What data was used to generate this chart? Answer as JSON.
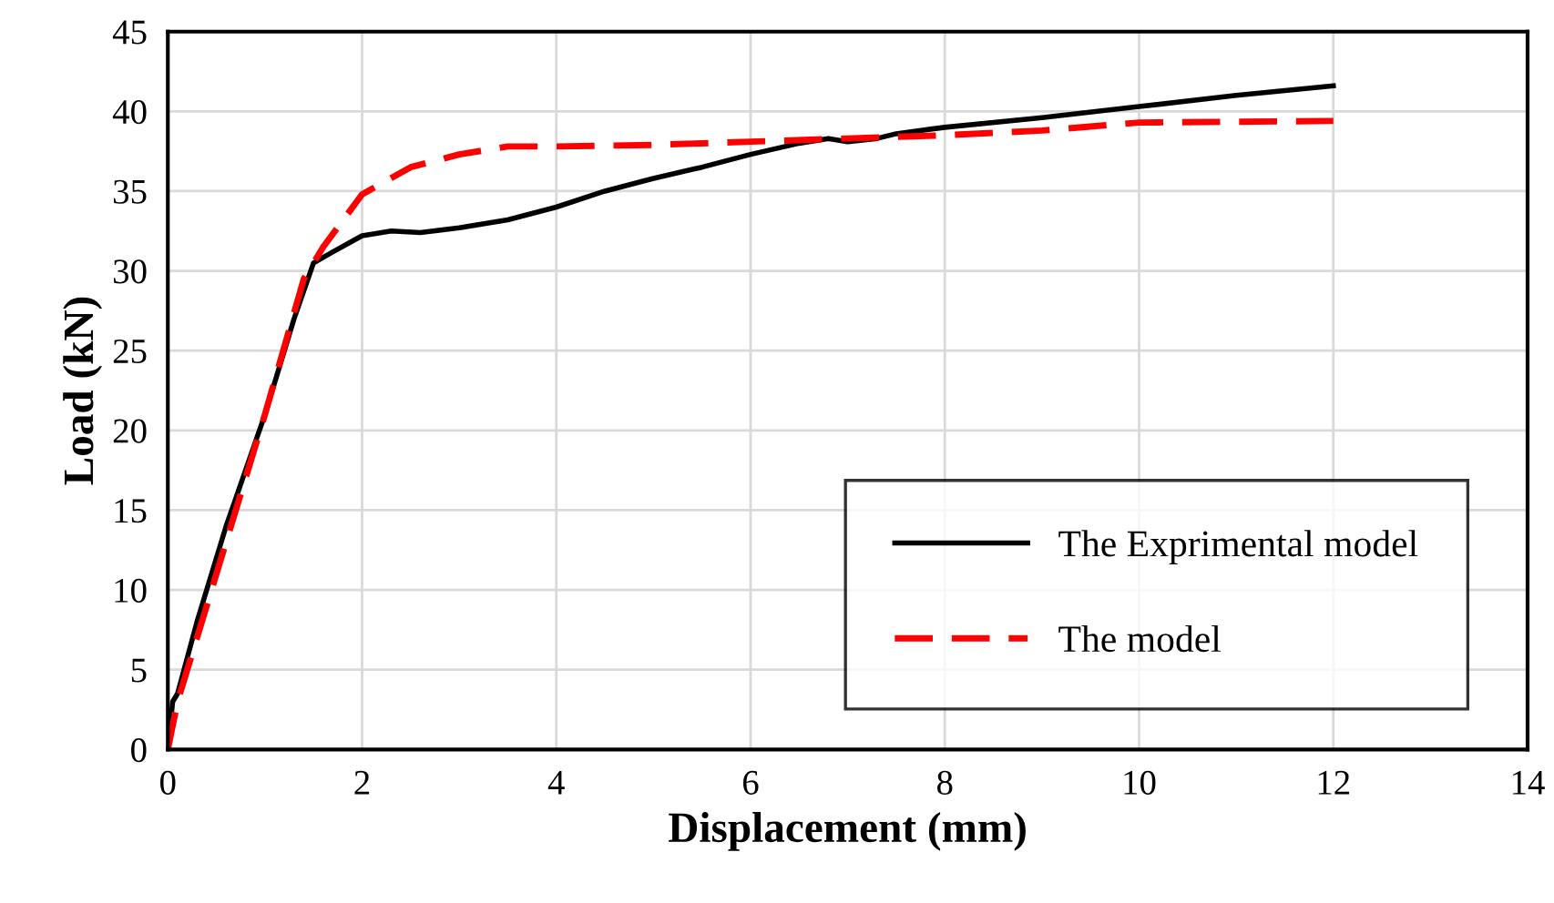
{
  "chart_data": {
    "type": "line",
    "xlabel": "Displacement (mm)",
    "ylabel": "Load (kN)",
    "xlim": [
      0,
      14
    ],
    "xticks": [
      0,
      2,
      4,
      6,
      8,
      10,
      12,
      14
    ],
    "ylim": [
      0,
      45
    ],
    "yticks": [
      0,
      5,
      10,
      15,
      20,
      25,
      30,
      35,
      40,
      45
    ],
    "grid": true,
    "legend": "bottom right",
    "series": [
      {
        "name": "The Exprimental model",
        "color": "#000000",
        "line_style": "solid",
        "x": [
          0,
          0.05,
          0.1,
          0.3,
          0.6,
          1.0,
          1.3,
          1.5,
          1.7,
          2,
          2.3,
          2.6,
          3,
          3.5,
          4,
          4.5,
          5,
          5.5,
          6,
          6.5,
          6.8,
          7,
          7.3,
          7.5,
          8,
          9,
          10,
          11,
          12
        ],
        "values": [
          0,
          3,
          3.5,
          8,
          14,
          21,
          27,
          30.5,
          31.2,
          32.2,
          32.5,
          32.4,
          32.7,
          33.2,
          34,
          35,
          35.8,
          36.5,
          37.3,
          38,
          38.3,
          38.1,
          38.3,
          38.6,
          39,
          39.6,
          40.3,
          41,
          41.6
        ]
      },
      {
        "name": "The model",
        "color": "#ff0000",
        "line_style": "dashed",
        "x": [
          0,
          0.1,
          0.5,
          1,
          1.4,
          1.6,
          2,
          2.5,
          3,
          3.5,
          4,
          5,
          6,
          7,
          8,
          9,
          10,
          12
        ],
        "values": [
          0,
          3,
          11,
          21,
          29.5,
          31.5,
          34.8,
          36.5,
          37.3,
          37.8,
          37.8,
          37.9,
          38.1,
          38.3,
          38.5,
          38.8,
          39.3,
          39.4
        ]
      }
    ]
  }
}
